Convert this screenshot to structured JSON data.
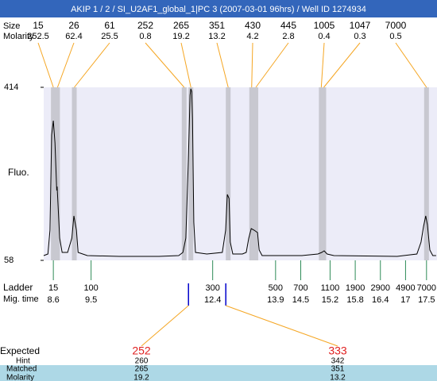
{
  "chart_data": {
    "type": "line",
    "title": "AKIP 1 / 2 / SI_U2AF1_global_1|PC 3 (2007-03-01 96hrs) / Well ID 1274934",
    "ylabel": "Fluo.",
    "color": "#000000",
    "ylim": [
      58,
      414
    ],
    "yticks": [
      58,
      414
    ],
    "xlim": [
      8.37,
      17.75
    ],
    "x": [
      8.37,
      8.47,
      8.52,
      8.56,
      8.6,
      8.64,
      8.68,
      8.69,
      8.71,
      8.75,
      8.81,
      8.94,
      9.04,
      9.09,
      9.15,
      9.19,
      9.41,
      10.17,
      11.12,
      11.59,
      11.69,
      11.76,
      11.82,
      11.86,
      11.88,
      11.9,
      11.92,
      11.95,
      11.99,
      12.26,
      12.63,
      12.71,
      12.75,
      12.79,
      12.82,
      12.88,
      13.11,
      13.2,
      13.26,
      13.32,
      13.39,
      13.47,
      13.51,
      13.58,
      14.53,
      14.91,
      15.0,
      15.06,
      15.13,
      15.29,
      16.8,
      17.27,
      17.37,
      17.43,
      17.48,
      17.52,
      17.58,
      17.65,
      17.73
    ],
    "values": [
      67.8,
      71.1,
      120.1,
      316,
      345.4,
      299.7,
      201.7,
      209.9,
      177.2,
      103.7,
      74.3,
      74.3,
      103.7,
      149.4,
      120.1,
      74.3,
      67.8,
      66.2,
      66.2,
      67.8,
      74.3,
      103.7,
      267,
      397.7,
      411,
      405,
      348.7,
      136.4,
      74.3,
      71.1,
      74.3,
      120.1,
      193.5,
      185.4,
      95.6,
      71.1,
      71.1,
      74.3,
      103.7,
      123.3,
      120.1,
      115.2,
      79.2,
      67.8,
      67.8,
      71.1,
      74.3,
      77.6,
      71.1,
      67.8,
      66.2,
      71.1,
      95.6,
      128.2,
      149.4,
      131.5,
      79.2,
      67.8,
      67.8
    ],
    "peaks": {
      "size_label": "Size",
      "molarity_label": "Molarity",
      "sizes": [
        15,
        26,
        61,
        252,
        265,
        351,
        430,
        445,
        1005,
        1047,
        7000
      ],
      "molarity": [
        252.5,
        62.4,
        25.5,
        0.8,
        19.2,
        13.2,
        4.2,
        2.8,
        0.4,
        0.3,
        0.5
      ],
      "times": [
        8.6,
        8.7,
        9.1,
        11.72,
        11.88,
        12.77,
        13.33,
        13.43,
        14.99,
        15.05,
        17.5
      ]
    },
    "ladder": {
      "label": "Ladder",
      "time_label": "Mig. time",
      "sizes": [
        15,
        100,
        300,
        500,
        700,
        1100,
        1900,
        2900,
        4900,
        7000
      ],
      "times": [
        8.6,
        9.5,
        12.4,
        13.9,
        14.5,
        15.2,
        15.8,
        16.4,
        17,
        17.5
      ]
    },
    "matches": {
      "expected_label": "Expected",
      "hint_label": "Hint",
      "matched_label": "Matched",
      "molarity_label": "Molarity",
      "expected": [
        252,
        333
      ],
      "hint": [
        260,
        342
      ],
      "matched": [
        265,
        351
      ],
      "molarity": [
        19.2,
        13.2
      ]
    }
  }
}
